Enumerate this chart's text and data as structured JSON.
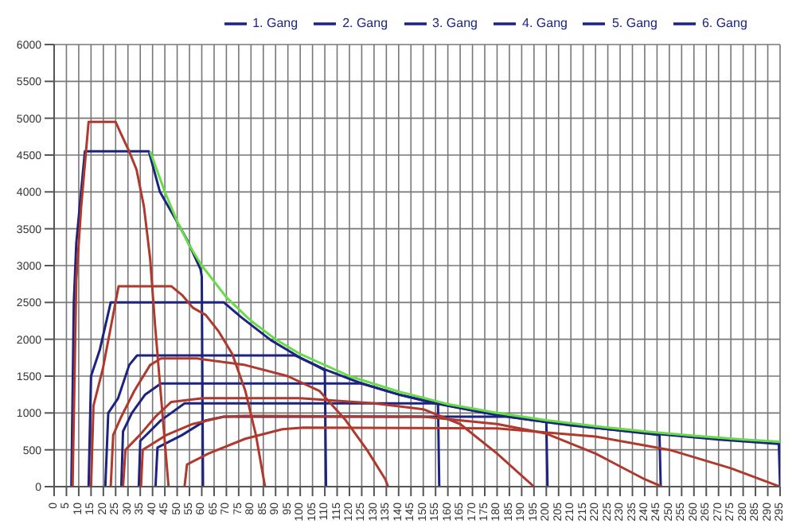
{
  "chart_data": {
    "type": "line",
    "legend": "top",
    "grid": true,
    "xlim": [
      0,
      295
    ],
    "xticks": [
      0,
      5,
      10,
      15,
      20,
      25,
      30,
      35,
      40,
      45,
      50,
      55,
      60,
      65,
      70,
      75,
      80,
      85,
      90,
      95,
      100,
      105,
      110,
      115,
      120,
      125,
      130,
      135,
      140,
      145,
      150,
      155,
      160,
      165,
      170,
      175,
      180,
      185,
      190,
      195,
      200,
      205,
      210,
      215,
      220,
      225,
      230,
      235,
      240,
      245,
      250,
      255,
      260,
      265,
      270,
      275,
      280,
      285,
      290,
      295
    ],
    "ylim": [
      0,
      6000
    ],
    "yticks": [
      0,
      500,
      1000,
      1500,
      2000,
      2500,
      3000,
      3500,
      4000,
      4500,
      5000,
      5500,
      6000
    ],
    "series": [
      {
        "name": "1. Gang",
        "color": "#1c2380",
        "x": [
          7,
          8,
          9,
          12.5,
          38.5,
          43,
          49,
          54,
          59.5,
          60,
          60.5
        ],
        "values": [
          0,
          2500,
          3300,
          4550,
          4550,
          4000,
          3650,
          3350,
          2950,
          2850,
          0
        ]
      },
      {
        "name": "2. Gang",
        "color": "#1c2380",
        "x": [
          14,
          15,
          18.5,
          23,
          69,
          76,
          88,
          100,
          106,
          110,
          110.5
        ],
        "values": [
          0,
          1500,
          1850,
          2500,
          2500,
          2300,
          1990,
          1750,
          1650,
          1580,
          0
        ]
      },
      {
        "name": "3. Gang",
        "color": "#1c2380",
        "x": [
          20.8,
          22,
          26,
          30.5,
          33.7,
          98,
          110,
          125,
          140,
          156,
          156.5
        ],
        "values": [
          0,
          1000,
          1200,
          1650,
          1780,
          1780,
          1590,
          1400,
          1250,
          1120,
          0
        ]
      },
      {
        "name": "4. Gang",
        "color": "#1c2380",
        "x": [
          27.3,
          28,
          31.6,
          37,
          43.4,
          125,
          140,
          160,
          180,
          200,
          200.5
        ],
        "values": [
          0,
          750,
          1000,
          1250,
          1400,
          1400,
          1250,
          1100,
          970,
          880,
          0
        ]
      },
      {
        "name": "5. Gang",
        "color": "#1c2380",
        "x": [
          34.4,
          35,
          43.4,
          53,
          155,
          175,
          200,
          225,
          246,
          246.5
        ],
        "values": [
          0,
          620,
          900,
          1130,
          1130,
          1000,
          880,
          780,
          700,
          0
        ]
      },
      {
        "name": "6. Gang",
        "color": "#1c2380",
        "x": [
          41.2,
          42,
          52,
          61.6,
          69,
          184,
          210,
          240,
          270,
          294.5,
          295
        ],
        "values": [
          0,
          530,
          700,
          900,
          950,
          950,
          830,
          730,
          640,
          580,
          0
        ]
      },
      {
        "color": "#66dd44",
        "x": [
          39,
          45,
          50,
          55,
          60,
          70,
          80,
          90,
          100,
          120,
          140,
          160,
          180,
          200,
          220,
          240,
          260,
          280,
          295
        ],
        "values": [
          4550,
          4000,
          3600,
          3270,
          3000,
          2570,
          2250,
          2000,
          1800,
          1500,
          1290,
          1120,
          1000,
          900,
          820,
          750,
          690,
          640,
          610
        ]
      },
      {
        "color": "#b0392e",
        "x": [
          7.5,
          9,
          11,
          14,
          25,
          27,
          30.5,
          33.5,
          36.5,
          39,
          41,
          43.5,
          46.5
        ],
        "values": [
          0,
          2800,
          3800,
          4950,
          4950,
          4800,
          4550,
          4300,
          3800,
          3100,
          2200,
          1200,
          0
        ]
      },
      {
        "color": "#b0392e",
        "x": [
          15,
          16,
          19.8,
          26.2,
          47.6,
          52,
          56.3,
          61.6,
          67,
          72.4,
          77.7,
          82,
          85.7
        ],
        "values": [
          0,
          1100,
          1600,
          2720,
          2720,
          2600,
          2430,
          2330,
          2100,
          1800,
          1300,
          700,
          0
        ]
      },
      {
        "color": "#b0392e",
        "x": [
          23,
          24,
          27.3,
          32.6,
          39,
          43.4,
          58,
          77.7,
          94.9,
          107.8,
          118.5,
          127.1,
          134.6,
          135.7
        ],
        "values": [
          0,
          700,
          950,
          1300,
          1650,
          1740,
          1740,
          1650,
          1500,
          1300,
          900,
          500,
          100,
          0
        ]
      },
      {
        "color": "#b0392e",
        "x": [
          28,
          29,
          34.8,
          41.2,
          47.6,
          60.5,
          100,
          130,
          150,
          165,
          180,
          195
        ],
        "values": [
          0,
          500,
          700,
          950,
          1150,
          1200,
          1200,
          1130,
          1050,
          850,
          450,
          0
        ]
      },
      {
        "color": "#b0392e",
        "x": [
          35.3,
          36,
          45.6,
          56.3,
          69,
          77.7,
          150,
          180,
          200,
          220,
          240,
          247
        ],
        "values": [
          0,
          500,
          700,
          850,
          950,
          960,
          950,
          850,
          720,
          450,
          100,
          0
        ]
      },
      {
        "color": "#b0392e",
        "x": [
          53,
          54,
          62.7,
          77.7,
          92.8,
          101.4,
          180,
          220,
          250,
          275,
          295
        ],
        "values": [
          0,
          300,
          450,
          650,
          780,
          800,
          790,
          680,
          500,
          250,
          0
        ]
      }
    ]
  }
}
